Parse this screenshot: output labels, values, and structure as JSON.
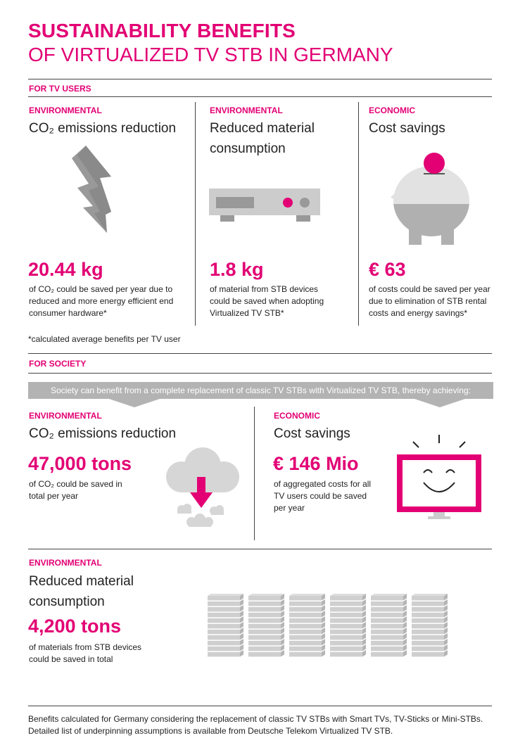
{
  "title": {
    "line1": "SUSTAINABILITY BENEFITS",
    "line2": "OF VIRTUALIZED TV STB IN GERMANY"
  },
  "tv_users": {
    "section_label": "FOR TV USERS",
    "columns": [
      {
        "category": "ENVIRONMENTAL",
        "heading": "CO₂ emissions reduction",
        "value": "20.44 kg",
        "description": "of CO₂ could be saved per year due to reduced and more energy efficient end consumer hardware*",
        "icon": "lightning-bolt-icon"
      },
      {
        "category": "ENVIRONMENTAL",
        "heading": "Reduced material consumption",
        "value": "1.8 kg",
        "description": "of material from STB devices could be saved when adopting Virtualized TV STB*",
        "icon": "set-top-box-icon"
      },
      {
        "category": "ECONOMIC",
        "heading": "Cost savings",
        "value": "€ 63",
        "description": "of costs could be saved per year due to elimination of STB rental costs and energy savings*",
        "icon": "piggy-bank-icon"
      }
    ],
    "footnote": "*calculated average benefits per TV user"
  },
  "society": {
    "section_label": "FOR SOCIETY",
    "banner": "Society can benefit from a complete replacement of classic TV STBs with Virtualized TV STB, thereby achieving:",
    "left": {
      "category": "ENVIRONMENTAL",
      "heading": "CO₂ emissions reduction",
      "value": "47,000 tons",
      "description": "of CO₂ could be saved in total per year",
      "icon": "cloud-down-arrow-icon"
    },
    "right": {
      "category": "ECONOMIC",
      "heading": "Cost savings",
      "value": "€ 146 Mio",
      "description": "of aggregated costs  for all TV  users could be saved per year",
      "icon": "happy-tv-icon"
    },
    "bottom": {
      "category": "ENVIRONMENTAL",
      "heading": "Reduced material consumption",
      "value": "4,200 tons",
      "description": "of materials from STB devices could be saved in total",
      "icon": "stacked-stb-icon"
    }
  },
  "footer": {
    "line1": "Benefits calculated for Germany considering the replacement of classic TV STBs with Smart TVs, TV-Sticks or Mini-STBs.",
    "line2": "Detailed list of underpinning assumptions is available from Deutsche Telekom Virtualized TV STB."
  },
  "colors": {
    "accent": "#e20074",
    "grey": "#b3b3b3",
    "text": "#222222"
  }
}
